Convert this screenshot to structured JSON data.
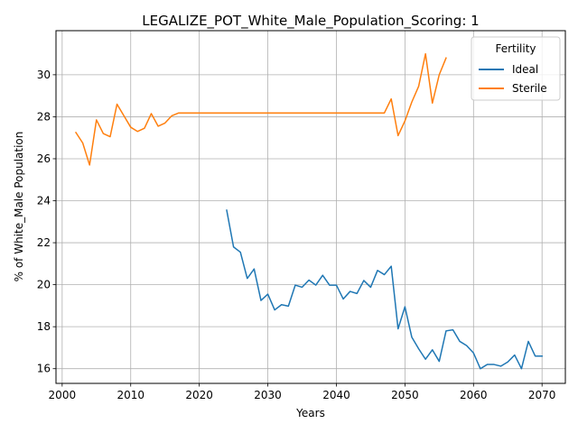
{
  "chart_data": {
    "type": "line",
    "title": "LEGALIZE_POT_White_Male_Population_Scoring: 1",
    "xlabel": "Years",
    "ylabel": "% of White_Male Population",
    "xlim": [
      1999.1,
      2073.4
    ],
    "ylim": [
      15.3,
      32.1
    ],
    "xticks": [
      2000,
      2010,
      2020,
      2030,
      2040,
      2050,
      2060,
      2070
    ],
    "yticks": [
      16,
      18,
      20,
      22,
      24,
      26,
      28,
      30
    ],
    "grid": true,
    "legend": {
      "title": "Fertility",
      "placement": "top-right"
    },
    "series": [
      {
        "name": "Ideal",
        "color": "#1f77b4",
        "x": [
          2024,
          2025,
          2026,
          2027,
          2028,
          2029,
          2030,
          2031,
          2032,
          2033,
          2034,
          2035,
          2036,
          2037,
          2038,
          2039,
          2040,
          2041,
          2042,
          2043,
          2044,
          2045,
          2046,
          2047,
          2048,
          2049,
          2050,
          2051,
          2052,
          2053,
          2054,
          2055,
          2056,
          2057,
          2058,
          2059,
          2060,
          2061,
          2062,
          2063,
          2064,
          2065,
          2066,
          2067,
          2068,
          2069,
          2070
        ],
        "values": [
          23.55,
          21.8,
          21.55,
          20.3,
          20.75,
          19.25,
          19.55,
          18.8,
          19.05,
          18.98,
          19.98,
          19.88,
          20.22,
          19.98,
          20.45,
          19.98,
          19.98,
          19.32,
          19.68,
          19.58,
          20.2,
          19.88,
          20.68,
          20.48,
          20.88,
          17.9,
          18.95,
          17.5,
          16.95,
          16.45,
          16.9,
          16.35,
          17.8,
          17.85,
          17.3,
          17.1,
          16.75,
          16.0,
          16.2,
          16.2,
          16.12,
          16.32,
          16.65,
          16.0,
          17.3,
          16.6,
          16.6
        ]
      },
      {
        "name": "Sterile",
        "color": "#ff7f0e",
        "x": [
          2002,
          2003,
          2004,
          2005,
          2006,
          2007,
          2008,
          2009,
          2010,
          2011,
          2012,
          2013,
          2014,
          2015,
          2016,
          2017,
          2018,
          2019,
          2020,
          2021,
          2022,
          2023,
          2024,
          2025,
          2026,
          2027,
          2028,
          2029,
          2030,
          2031,
          2032,
          2033,
          2034,
          2035,
          2036,
          2037,
          2038,
          2039,
          2040,
          2041,
          2042,
          2043,
          2044,
          2045,
          2046,
          2047,
          2048,
          2049,
          2050,
          2051,
          2052,
          2053,
          2054,
          2055,
          2056
        ],
        "values": [
          27.25,
          26.75,
          25.7,
          27.85,
          27.2,
          27.05,
          28.6,
          28.05,
          27.5,
          27.3,
          27.45,
          28.15,
          27.55,
          27.7,
          28.05,
          28.18,
          28.18,
          28.18,
          28.18,
          28.18,
          28.18,
          28.18,
          28.18,
          28.18,
          28.18,
          28.18,
          28.18,
          28.18,
          28.18,
          28.18,
          28.18,
          28.18,
          28.18,
          28.18,
          28.18,
          28.18,
          28.18,
          28.18,
          28.18,
          28.18,
          28.18,
          28.18,
          28.18,
          28.18,
          28.18,
          28.18,
          28.85,
          27.1,
          27.8,
          28.7,
          29.45,
          31.0,
          28.65,
          30.0,
          30.8
        ]
      }
    ]
  }
}
